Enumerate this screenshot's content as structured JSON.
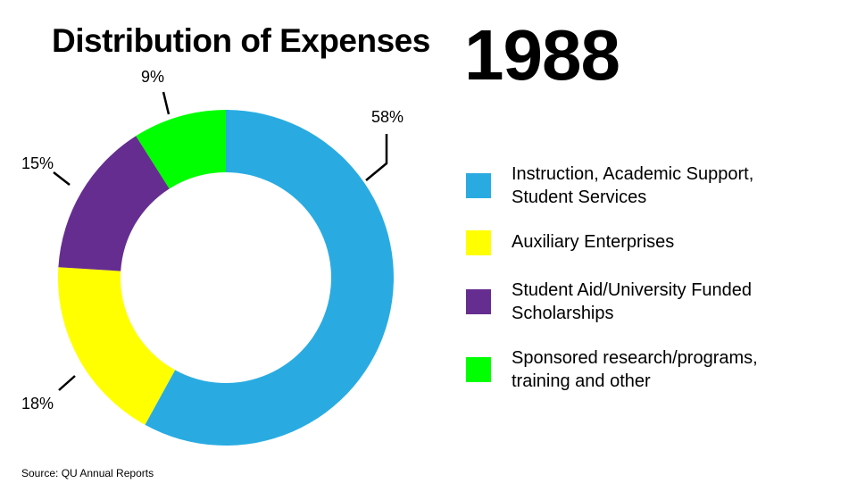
{
  "title": "Distribution of Expenses",
  "year": "1988",
  "source": "Source: QU Annual Reports",
  "chart_data": {
    "type": "pie",
    "title": "Distribution of Expenses",
    "subtitle": "1988",
    "donut": true,
    "categories": [
      "Instruction, Academic Support, Student Services",
      "Auxiliary Enterprises",
      "Student Aid/University Funded Scholarships",
      "Sponsored research/programs, training and other"
    ],
    "values": [
      58,
      18,
      15,
      9
    ],
    "labels": [
      "58%",
      "18%",
      "15%",
      "9%"
    ],
    "colors": [
      "#29abe2",
      "#ffff00",
      "#662d91",
      "#00ff00"
    ],
    "legend_position": "right"
  },
  "legend": [
    {
      "line1": "Instruction, Academic Support,",
      "line2": "Student Services",
      "color": "#29abe2"
    },
    {
      "line1": "Auxiliary Enterprises",
      "line2": "",
      "color": "#ffff00"
    },
    {
      "line1": "Student Aid/University Funded",
      "line2": "Scholarships",
      "color": "#662d91"
    },
    {
      "line1": "Sponsored research/programs,",
      "line2": "training and other",
      "color": "#00ff00"
    }
  ]
}
